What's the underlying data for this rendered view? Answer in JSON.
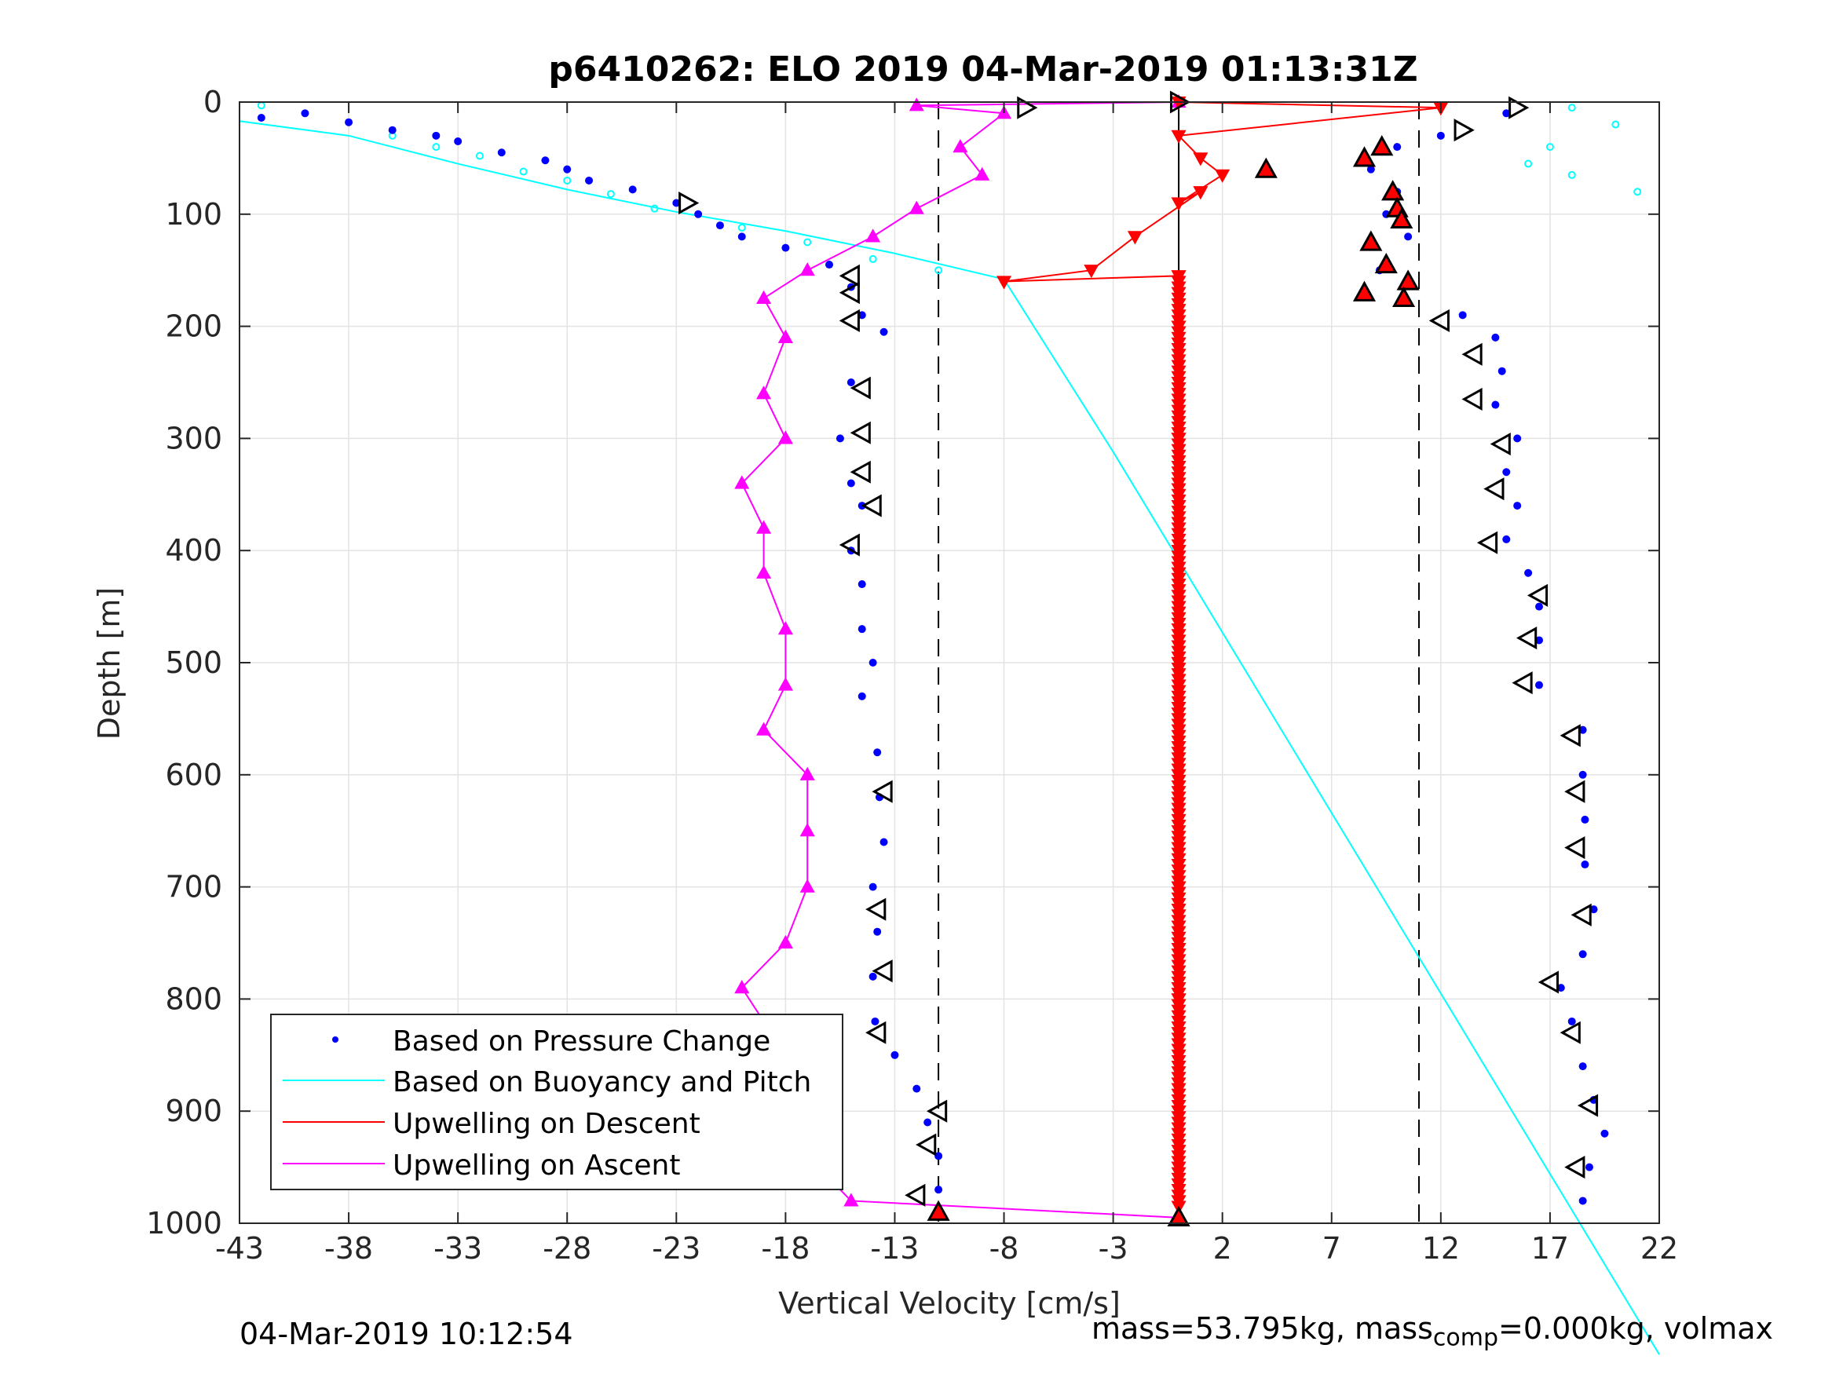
{
  "chart_data": {
    "type": "scatter",
    "title": "p6410262: ELO 2019 04-Mar-2019 01:13:31Z",
    "xlabel": "Vertical Velocity [cm/s]",
    "ylabel": "Depth [m]",
    "xlim": [
      -43,
      22
    ],
    "ylim": [
      0,
      1000
    ],
    "y_reversed": true,
    "grid": true,
    "legend_position": "bottom-left",
    "xticks": [
      -43,
      -38,
      -33,
      -28,
      -23,
      -18,
      -13,
      -8,
      -3,
      2,
      7,
      12,
      17,
      22
    ],
    "yticks": [
      0,
      100,
      200,
      300,
      400,
      500,
      600,
      700,
      800,
      900,
      1000
    ],
    "colors": {
      "pressure": "#0000ff",
      "buoyancy": "#00ffff",
      "descent": "#ff0000",
      "ascent": "#ff00ff",
      "axis": "#262626",
      "grid": "#e3e3e3"
    },
    "series": [
      {
        "name": "Based on Pressure Change",
        "style": "dots",
        "descent": [
          [
            -42,
            14
          ],
          [
            -40,
            10
          ],
          [
            -38,
            18
          ],
          [
            -36,
            25
          ],
          [
            -34,
            30
          ],
          [
            -33,
            35
          ],
          [
            -31,
            45
          ],
          [
            -29,
            52
          ],
          [
            -28,
            60
          ],
          [
            -27,
            70
          ],
          [
            -25,
            78
          ],
          [
            -23,
            90
          ],
          [
            -22,
            100
          ],
          [
            -21,
            110
          ],
          [
            -20,
            120
          ],
          [
            -18,
            130
          ],
          [
            -16,
            145
          ],
          [
            -15,
            165
          ],
          [
            -14.5,
            190
          ],
          [
            -13.5,
            205
          ],
          [
            -15,
            250
          ],
          [
            -15.5,
            300
          ],
          [
            -15,
            340
          ],
          [
            -14.5,
            360
          ],
          [
            -15,
            400
          ],
          [
            -14.5,
            430
          ],
          [
            -14.5,
            470
          ],
          [
            -14,
            500
          ],
          [
            -14.5,
            530
          ],
          [
            -13.8,
            580
          ],
          [
            -13.7,
            620
          ],
          [
            -13.5,
            660
          ],
          [
            -14,
            700
          ],
          [
            -13.8,
            740
          ],
          [
            -14,
            780
          ],
          [
            -13.9,
            820
          ],
          [
            -13,
            850
          ],
          [
            -12,
            880
          ],
          [
            -11.5,
            910
          ],
          [
            -11,
            940
          ],
          [
            -11,
            970
          ],
          [
            -11,
            990
          ]
        ],
        "ascent": [
          [
            8.5,
            170
          ],
          [
            9.2,
            150
          ],
          [
            10.5,
            120
          ],
          [
            9.5,
            100
          ],
          [
            10,
            80
          ],
          [
            8.8,
            60
          ],
          [
            10,
            40
          ],
          [
            12,
            30
          ],
          [
            15,
            10
          ],
          [
            13,
            190
          ],
          [
            14.5,
            210
          ],
          [
            14.8,
            240
          ],
          [
            14.5,
            270
          ],
          [
            15.5,
            300
          ],
          [
            15,
            330
          ],
          [
            15.5,
            360
          ],
          [
            15,
            390
          ],
          [
            16,
            420
          ],
          [
            16.5,
            450
          ],
          [
            16.5,
            480
          ],
          [
            16.5,
            520
          ],
          [
            18.5,
            560
          ],
          [
            18.5,
            600
          ],
          [
            18.6,
            640
          ],
          [
            18.6,
            680
          ],
          [
            19,
            720
          ],
          [
            18.5,
            760
          ],
          [
            17.5,
            790
          ],
          [
            18,
            820
          ],
          [
            18.5,
            860
          ],
          [
            19,
            890
          ],
          [
            19.5,
            920
          ],
          [
            18.8,
            950
          ],
          [
            18.5,
            980
          ]
        ]
      },
      {
        "name": "Based on Buoyancy and Pitch",
        "style": "line",
        "line": [
          [
            -43,
            17
          ],
          [
            -38,
            30
          ],
          [
            -33,
            55
          ],
          [
            -28,
            78
          ],
          [
            -23,
            98
          ],
          [
            -18,
            115
          ],
          [
            -13,
            135
          ],
          [
            -8,
            158
          ],
          [
            -3,
            312
          ],
          [
            2,
            473
          ],
          [
            7,
            634
          ],
          [
            12,
            795
          ],
          [
            22,
            1117
          ]
        ],
        "noise_dots": [
          [
            -42,
            3
          ],
          [
            -36,
            30
          ],
          [
            -34,
            40
          ],
          [
            -32,
            48
          ],
          [
            -30,
            62
          ],
          [
            -28,
            70
          ],
          [
            -26,
            82
          ],
          [
            -24,
            95
          ],
          [
            -20,
            112
          ],
          [
            -17,
            125
          ],
          [
            -14,
            140
          ],
          [
            -11,
            150
          ],
          [
            18,
            5
          ],
          [
            20,
            20
          ],
          [
            17,
            40
          ],
          [
            16,
            55
          ],
          [
            18,
            65
          ],
          [
            21,
            80
          ]
        ]
      },
      {
        "name": "Upwelling on Descent",
        "style": "line-triangle-down",
        "values": [
          [
            0,
            0
          ],
          [
            12,
            5
          ],
          [
            0,
            30
          ],
          [
            1,
            50
          ],
          [
            2,
            65
          ],
          [
            0,
            90
          ],
          [
            1,
            80
          ],
          [
            -2,
            120
          ],
          [
            -4,
            150
          ],
          [
            -8,
            160
          ],
          [
            0,
            155
          ],
          [
            0,
            200
          ],
          [
            0,
            300
          ],
          [
            0,
            400
          ],
          [
            0,
            500
          ],
          [
            0,
            600
          ],
          [
            0,
            700
          ],
          [
            0,
            800
          ],
          [
            0,
            900
          ],
          [
            0,
            980
          ]
        ]
      },
      {
        "name": "Upwelling on Ascent",
        "style": "line-triangle-up",
        "values": [
          [
            0,
            0
          ],
          [
            -12,
            3
          ],
          [
            -8,
            10
          ],
          [
            -10,
            40
          ],
          [
            -9,
            65
          ],
          [
            -12,
            95
          ],
          [
            -14,
            120
          ],
          [
            -17,
            150
          ],
          [
            -19,
            175
          ],
          [
            -18,
            210
          ],
          [
            -19,
            260
          ],
          [
            -18,
            300
          ],
          [
            -20,
            340
          ],
          [
            -19,
            380
          ],
          [
            -19,
            420
          ],
          [
            -18,
            470
          ],
          [
            -18,
            520
          ],
          [
            -19,
            560
          ],
          [
            -17,
            600
          ],
          [
            -17,
            650
          ],
          [
            -17,
            700
          ],
          [
            -18,
            750
          ],
          [
            -20,
            790
          ],
          [
            -19,
            820
          ],
          [
            -17,
            860
          ],
          [
            -16,
            900
          ],
          [
            -17,
            940
          ],
          [
            -15,
            980
          ],
          [
            0,
            995
          ]
        ]
      }
    ],
    "dashed_vlines": [
      -11,
      0,
      11
    ],
    "markers": {
      "open_right": [
        [
          -7,
          5
        ],
        [
          0,
          0
        ],
        [
          15.5,
          5
        ],
        [
          13,
          25
        ],
        [
          -22.5,
          90
        ]
      ],
      "open_left": [
        [
          -15,
          155
        ],
        [
          -15,
          170
        ],
        [
          -15,
          195
        ],
        [
          -14.5,
          255
        ],
        [
          -14.5,
          295
        ],
        [
          -14.5,
          330
        ],
        [
          -14,
          360
        ],
        [
          -15,
          395
        ],
        [
          -13.5,
          615
        ],
        [
          -13.8,
          720
        ],
        [
          -13.5,
          775
        ],
        [
          -13.8,
          830
        ],
        [
          -11,
          900
        ],
        [
          -11.5,
          930
        ],
        [
          -12,
          975
        ],
        [
          12,
          195
        ],
        [
          13.5,
          225
        ],
        [
          13.5,
          265
        ],
        [
          14.8,
          305
        ],
        [
          14.5,
          345
        ],
        [
          14.2,
          393
        ],
        [
          16.5,
          440
        ],
        [
          16,
          478
        ],
        [
          15.8,
          518
        ],
        [
          18,
          565
        ],
        [
          18.2,
          615
        ],
        [
          18.2,
          665
        ],
        [
          18.5,
          725
        ],
        [
          17,
          785
        ],
        [
          18,
          830
        ],
        [
          18.8,
          895
        ],
        [
          18.2,
          950
        ]
      ],
      "filled_red": [
        [
          4,
          60
        ],
        [
          8.5,
          50
        ],
        [
          9.3,
          40
        ],
        [
          9.8,
          80
        ],
        [
          10,
          95
        ],
        [
          10.2,
          105
        ],
        [
          8.8,
          125
        ],
        [
          9.5,
          145
        ],
        [
          10.5,
          160
        ],
        [
          8.5,
          170
        ],
        [
          10.3,
          175
        ],
        [
          0,
          995
        ],
        [
          -11,
          990
        ]
      ]
    }
  },
  "legend": {
    "entries": [
      "Based on Pressure Change",
      "Based on Buoyancy and Pitch",
      "Upwelling on Descent",
      "Upwelling on Ascent"
    ]
  },
  "footer": {
    "timestamp": "04-Mar-2019 10:12:54",
    "mass_text": "mass=53.795kg, mass",
    "mass_sub": "comp",
    "mass_tail": "=0.000kg, volmax"
  }
}
